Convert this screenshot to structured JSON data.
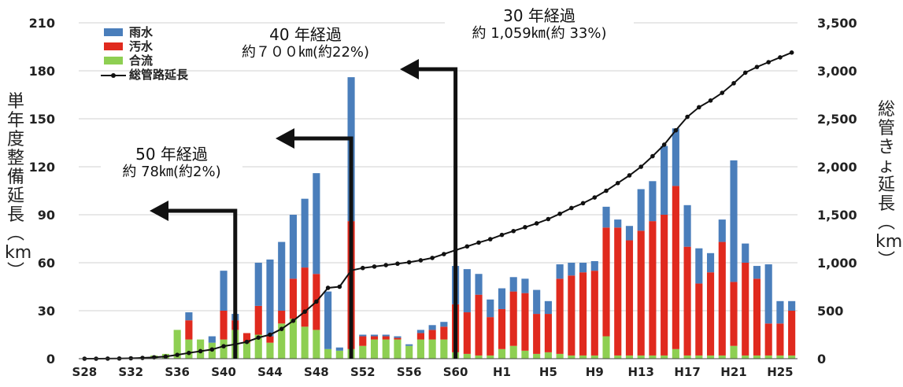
{
  "chart_data": {
    "type": "bar",
    "stacked": true,
    "ylabel_left_lines": [
      "単",
      "年",
      "度",
      "整",
      "備",
      "延",
      "長",
      "︵",
      "km",
      "︶"
    ],
    "ylabel_right_lines": [
      "総",
      "管",
      "き",
      "ょ",
      "延",
      "長",
      "︵",
      "km",
      "︶"
    ],
    "left_ylim": [
      0,
      210
    ],
    "left_ticks": [
      "0",
      "30",
      "60",
      "90",
      "120",
      "150",
      "180",
      "210"
    ],
    "right_ylim": [
      0,
      3500
    ],
    "right_ticks": [
      "0",
      "500",
      "1,000",
      "1,500",
      "2,000",
      "2,500",
      "3,000",
      "3,500"
    ],
    "xtick_labels": [
      "S28",
      "S32",
      "S36",
      "S40",
      "S44",
      "S48",
      "S52",
      "S56",
      "S60",
      "H1",
      "H5",
      "H9",
      "H13",
      "H17",
      "H21",
      "H25"
    ],
    "legend": [
      "雨水",
      "汚水",
      "合流",
      "総管路延長"
    ],
    "colors": {
      "rain": "#4a7ebb",
      "sewage": "#e02a1e",
      "combined": "#8ecf52",
      "line": "#111111"
    },
    "categories": [
      "S28",
      "S29",
      "S30",
      "S31",
      "S32",
      "S33",
      "S34",
      "S35",
      "S36",
      "S37",
      "S38",
      "S39",
      "S40",
      "S41",
      "S42",
      "S43",
      "S44",
      "S45",
      "S46",
      "S47",
      "S48",
      "S49",
      "S50",
      "S51",
      "S52",
      "S53",
      "S54",
      "S55",
      "S56",
      "S57",
      "S58",
      "S59",
      "S60",
      "S61",
      "S62",
      "S63",
      "H1",
      "H2",
      "H3",
      "H4",
      "H5",
      "H6",
      "H7",
      "H8",
      "H9",
      "H10",
      "H11",
      "H12",
      "H13",
      "H14",
      "H15",
      "H16",
      "H17",
      "H18",
      "H19",
      "H20",
      "H21",
      "H22",
      "H23",
      "H24",
      "H25",
      "H26"
    ],
    "series": [
      {
        "name": "合流",
        "values": [
          0,
          0,
          0,
          0,
          0,
          1,
          2,
          3,
          18,
          12,
          12,
          10,
          12,
          18,
          10,
          15,
          10,
          22,
          25,
          20,
          18,
          6,
          5,
          6,
          8,
          12,
          12,
          12,
          8,
          12,
          12,
          12,
          4,
          3,
          2,
          2,
          6,
          8,
          5,
          3,
          4,
          3,
          2,
          2,
          2,
          14,
          2,
          2,
          2,
          2,
          2,
          6,
          2,
          2,
          2,
          2,
          8,
          2,
          2,
          2,
          2,
          2
        ]
      },
      {
        "name": "汚水",
        "values": [
          0,
          0,
          0,
          0,
          0,
          0,
          0,
          0,
          0,
          12,
          0,
          0,
          18,
          6,
          6,
          18,
          4,
          8,
          25,
          37,
          35,
          0,
          0,
          80,
          6,
          2,
          2,
          1,
          0,
          4,
          6,
          8,
          30,
          26,
          38,
          24,
          25,
          34,
          36,
          25,
          24,
          47,
          50,
          52,
          53,
          68,
          80,
          72,
          78,
          84,
          88,
          102,
          68,
          45,
          52,
          71,
          40,
          58,
          48,
          20,
          20,
          28
        ]
      },
      {
        "name": "雨水",
        "values": [
          0,
          0,
          0,
          0,
          0,
          0,
          0,
          0,
          0,
          5,
          0,
          4,
          25,
          4,
          0,
          27,
          48,
          43,
          40,
          43,
          63,
          36,
          2,
          90,
          1,
          1,
          1,
          1,
          1,
          2,
          3,
          3,
          24,
          27,
          13,
          11,
          13,
          9,
          9,
          15,
          8,
          9,
          8,
          6,
          6,
          13,
          5,
          9,
          26,
          25,
          43,
          36,
          26,
          22,
          12,
          14,
          76,
          12,
          8,
          37,
          14,
          6
        ]
      },
      {
        "name": "総管路延長",
        "values": [
          0,
          0,
          1,
          2,
          4,
          8,
          14,
          22,
          40,
          60,
          78,
          96,
          130,
          150,
          175,
          220,
          250,
          310,
          395,
          490,
          595,
          738,
          750,
          920,
          945,
          960,
          975,
          990,
          1005,
          1025,
          1050,
          1090,
          1130,
          1170,
          1210,
          1245,
          1290,
          1330,
          1370,
          1410,
          1455,
          1510,
          1570,
          1620,
          1680,
          1750,
          1830,
          1910,
          2000,
          2110,
          2230,
          2380,
          2520,
          2620,
          2690,
          2770,
          2870,
          2980,
          3040,
          3090,
          3140,
          3190
        ]
      }
    ],
    "annotations": [
      {
        "year_label": "50 年経過",
        "length_label": "約 78㎞(約2%)"
      },
      {
        "year_label": "40 年経過",
        "length_label": "約７００㎞(約22%)"
      },
      {
        "year_label": "30 年経過",
        "length_label": "約 1,059㎞(約 33%)"
      }
    ]
  }
}
